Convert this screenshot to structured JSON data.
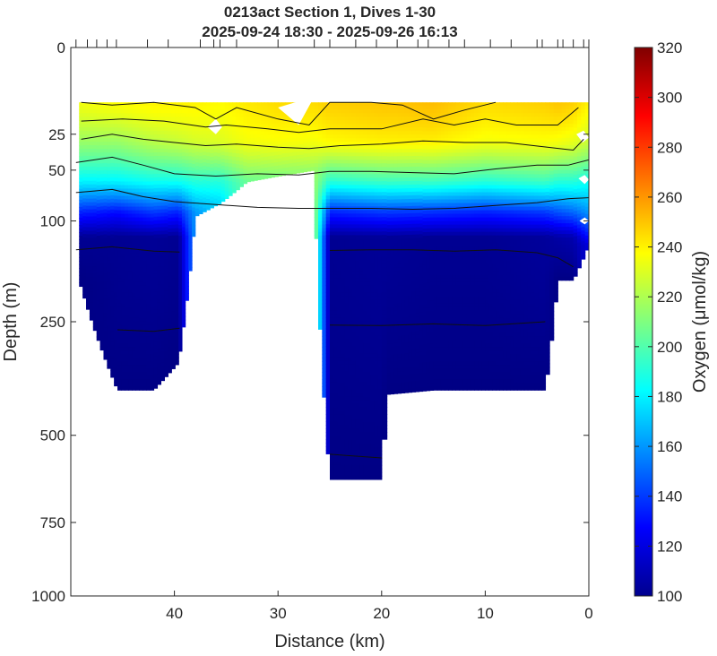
{
  "chart_data": {
    "type": "heatmap",
    "title": "0213act Section 1, Dives 1-30",
    "subtitle": "2025-09-24 18:30 - 2025-09-26 16:13",
    "xlabel": "Distance (km)",
    "ylabel": "Depth (m)",
    "colorbar_label": "Oxygen (μmol/kg)",
    "x_range": [
      50,
      0
    ],
    "x_ticks": [
      40,
      30,
      20,
      10,
      0
    ],
    "y_range": [
      0,
      1000
    ],
    "y_scale": "square-root",
    "y_ticks": [
      0,
      25,
      50,
      100,
      250,
      500,
      750,
      1000
    ],
    "color_range": [
      100,
      320
    ],
    "color_ticks": [
      100,
      120,
      140,
      160,
      180,
      200,
      220,
      240,
      260,
      280,
      300,
      320
    ],
    "colormap": "jet",
    "dive_positions_km": [
      49.5,
      48.4,
      47.5,
      46.5,
      45.6,
      42.6,
      40.6,
      37.5,
      36.2,
      35.6,
      34,
      30,
      26.5,
      25,
      22.5,
      20.5,
      18.5,
      16.5,
      15.5,
      13.5,
      12,
      9.5,
      7.5,
      5,
      4.5,
      3,
      2.5,
      1.5,
      0.5,
      0
    ],
    "profiles": [
      {
        "x": 49.2,
        "top": 10,
        "bottom": 180,
        "oxygen": [
          [
            10,
            235
          ],
          [
            30,
            215
          ],
          [
            60,
            180
          ],
          [
            90,
            135
          ],
          [
            120,
            104
          ],
          [
            180,
            101
          ]
        ]
      },
      {
        "x": 45.5,
        "top": 10,
        "bottom": 390,
        "oxygen": [
          [
            10,
            238
          ],
          [
            30,
            215
          ],
          [
            60,
            180
          ],
          [
            90,
            130
          ],
          [
            120,
            104
          ],
          [
            390,
            101
          ]
        ]
      },
      {
        "x": 42,
        "top": 10,
        "bottom": 390,
        "oxygen": [
          [
            10,
            240
          ],
          [
            30,
            222
          ],
          [
            60,
            185
          ],
          [
            90,
            140
          ],
          [
            120,
            105
          ],
          [
            390,
            101
          ]
        ]
      },
      {
        "x": 39.6,
        "top": 10,
        "bottom": 330,
        "oxygen": [
          [
            10,
            240
          ],
          [
            30,
            225
          ],
          [
            60,
            185
          ],
          [
            90,
            135
          ],
          [
            120,
            104
          ],
          [
            330,
            101
          ]
        ]
      },
      {
        "x": 38,
        "top": 10,
        "bottom": 95,
        "oxygen": [
          [
            10,
            240
          ],
          [
            30,
            228
          ],
          [
            60,
            190
          ],
          [
            90,
            160
          ]
        ]
      },
      {
        "x": 35.5,
        "top": 10,
        "bottom": 80,
        "oxygen": [
          [
            10,
            238
          ],
          [
            30,
            230
          ],
          [
            60,
            190
          ],
          [
            80,
            175
          ]
        ]
      },
      {
        "x": 33,
        "top": 10,
        "bottom": 60,
        "oxygen": [
          [
            10,
            242
          ],
          [
            30,
            235
          ],
          [
            60,
            205
          ]
        ]
      },
      {
        "x": 30,
        "top": 10,
        "bottom": 55,
        "oxygen": [
          [
            10,
            245
          ],
          [
            30,
            236
          ],
          [
            55,
            210
          ]
        ]
      },
      {
        "x": 26.5,
        "top": 10,
        "bottom": 50,
        "oxygen": [
          [
            10,
            245
          ],
          [
            30,
            235
          ],
          [
            50,
            215
          ]
        ]
      },
      {
        "x": 25,
        "top": 10,
        "bottom": 620,
        "oxygen": [
          [
            10,
            248
          ],
          [
            30,
            238
          ],
          [
            60,
            190
          ],
          [
            90,
            135
          ],
          [
            120,
            104
          ],
          [
            620,
            101
          ]
        ]
      },
      {
        "x": 20,
        "top": 10,
        "bottom": 620,
        "oxygen": [
          [
            10,
            250
          ],
          [
            30,
            240
          ],
          [
            60,
            195
          ],
          [
            90,
            140
          ],
          [
            120,
            105
          ],
          [
            620,
            101
          ]
        ]
      },
      {
        "x": 19.5,
        "top": 10,
        "bottom": 400,
        "oxygen": [
          [
            10,
            250
          ],
          [
            30,
            240
          ],
          [
            60,
            195
          ],
          [
            90,
            140
          ],
          [
            120,
            105
          ],
          [
            400,
            101
          ]
        ]
      },
      {
        "x": 15,
        "top": 10,
        "bottom": 390,
        "oxygen": [
          [
            10,
            252
          ],
          [
            30,
            240
          ],
          [
            60,
            195
          ],
          [
            90,
            138
          ],
          [
            120,
            104
          ],
          [
            390,
            101
          ]
        ]
      },
      {
        "x": 10,
        "top": 10,
        "bottom": 390,
        "oxygen": [
          [
            10,
            245
          ],
          [
            30,
            235
          ],
          [
            60,
            190
          ],
          [
            90,
            135
          ],
          [
            120,
            104
          ],
          [
            390,
            101
          ]
        ]
      },
      {
        "x": 4.2,
        "top": 10,
        "bottom": 390,
        "oxygen": [
          [
            10,
            248
          ],
          [
            30,
            236
          ],
          [
            60,
            195
          ],
          [
            90,
            140
          ],
          [
            120,
            106
          ],
          [
            390,
            101
          ]
        ]
      },
      {
        "x": 3,
        "top": 10,
        "bottom": 180,
        "oxygen": [
          [
            10,
            250
          ],
          [
            30,
            235
          ],
          [
            60,
            190
          ],
          [
            90,
            145
          ],
          [
            120,
            108
          ],
          [
            180,
            101
          ]
        ]
      },
      {
        "x": 1.5,
        "top": 10,
        "bottom": 180,
        "oxygen": [
          [
            10,
            248
          ],
          [
            30,
            232
          ],
          [
            60,
            190
          ],
          [
            90,
            150
          ],
          [
            120,
            110
          ],
          [
            180,
            101
          ]
        ]
      },
      {
        "x": 0,
        "top": 10,
        "bottom": 130,
        "oxygen": [
          [
            10,
            240
          ],
          [
            30,
            225
          ],
          [
            60,
            185
          ],
          [
            90,
            160
          ],
          [
            130,
            120
          ]
        ]
      }
    ],
    "contours": [
      {
        "label": "",
        "points": [
          [
            49,
            10
          ],
          [
            46,
            11
          ],
          [
            42,
            10
          ],
          [
            38,
            12
          ],
          [
            36,
            17
          ],
          [
            34,
            12
          ],
          [
            30,
            17
          ],
          [
            27,
            20
          ],
          [
            25,
            10
          ],
          [
            21,
            10
          ],
          [
            18,
            11
          ],
          [
            15,
            17
          ],
          [
            12,
            13
          ],
          [
            9,
            10
          ]
        ]
      },
      {
        "label": "",
        "points": [
          [
            49,
            18
          ],
          [
            45,
            17
          ],
          [
            41,
            18
          ],
          [
            37,
            21
          ],
          [
            35,
            20
          ],
          [
            31,
            22
          ],
          [
            28,
            24
          ],
          [
            25,
            22
          ],
          [
            20,
            22
          ],
          [
            16,
            17
          ],
          [
            13,
            20
          ],
          [
            10,
            17
          ],
          [
            7,
            20
          ],
          [
            3,
            20
          ],
          [
            1,
            12
          ]
        ]
      },
      {
        "label": "",
        "points": [
          [
            49,
            28
          ],
          [
            46,
            25
          ],
          [
            43,
            28
          ],
          [
            40,
            30
          ],
          [
            37,
            32
          ],
          [
            34,
            31
          ],
          [
            30,
            33
          ],
          [
            27,
            34
          ],
          [
            24,
            32
          ],
          [
            20,
            31
          ],
          [
            16,
            29
          ],
          [
            12,
            30
          ],
          [
            8,
            30
          ],
          [
            4,
            33
          ],
          [
            1.5,
            35
          ],
          [
            0.5,
            28
          ]
        ]
      },
      {
        "label": "",
        "points": [
          [
            49.5,
            44
          ],
          [
            46,
            40
          ],
          [
            43,
            46
          ],
          [
            40,
            53
          ],
          [
            36,
            55
          ],
          [
            32,
            53
          ],
          [
            28,
            54
          ],
          [
            25,
            51
          ],
          [
            21,
            51
          ],
          [
            17,
            52
          ],
          [
            13,
            53
          ],
          [
            9,
            49
          ],
          [
            5,
            46
          ],
          [
            2,
            46
          ],
          [
            0,
            42
          ]
        ]
      },
      {
        "label": "",
        "points": [
          [
            49.5,
            70
          ],
          [
            46,
            67
          ],
          [
            43,
            74
          ],
          [
            40,
            79
          ],
          [
            36,
            82
          ],
          [
            32,
            85
          ],
          [
            28,
            86
          ],
          [
            25,
            86
          ],
          [
            21,
            86
          ],
          [
            17,
            87
          ],
          [
            13,
            86
          ],
          [
            9,
            83
          ],
          [
            5,
            80
          ],
          [
            2,
            76
          ],
          [
            0,
            75
          ]
        ]
      },
      {
        "label": "",
        "points": [
          [
            49.5,
            136
          ],
          [
            46,
            132
          ],
          [
            42,
            138
          ],
          [
            39.5,
            139
          ]
        ]
      },
      {
        "label": "",
        "points": [
          [
            25,
            137
          ],
          [
            21,
            136
          ],
          [
            17,
            136
          ],
          [
            13,
            138
          ],
          [
            9,
            136
          ],
          [
            5,
            140
          ],
          [
            3,
            147
          ],
          [
            1.5,
            160
          ]
        ]
      },
      {
        "label": "",
        "points": [
          [
            45.5,
            265
          ],
          [
            42,
            268
          ],
          [
            39.5,
            262
          ]
        ]
      },
      {
        "label": "",
        "points": [
          [
            25,
            256
          ],
          [
            20,
            257
          ],
          [
            15,
            254
          ],
          [
            10,
            257
          ],
          [
            4.2,
            250
          ]
        ]
      },
      {
        "label": "",
        "points": [
          [
            25,
            550
          ],
          [
            20,
            560
          ]
        ]
      }
    ],
    "gaps": [
      {
        "points": [
          [
            30,
            12
          ],
          [
            26.5,
            8
          ],
          [
            28,
            20
          ]
        ]
      },
      {
        "points": [
          [
            36.8,
            21
          ],
          [
            36,
            17
          ],
          [
            35.4,
            21
          ],
          [
            36,
            25
          ]
        ]
      },
      {
        "points": [
          [
            1.2,
            25
          ],
          [
            0.5,
            23
          ],
          [
            0,
            27
          ],
          [
            0.6,
            30
          ]
        ]
      },
      {
        "points": [
          [
            1,
            57
          ],
          [
            0.4,
            54
          ],
          [
            0,
            58
          ],
          [
            0.4,
            62
          ]
        ]
      },
      {
        "points": [
          [
            0.9,
            100
          ],
          [
            0.4,
            96
          ],
          [
            0,
            100
          ],
          [
            0.4,
            104
          ]
        ]
      }
    ]
  }
}
